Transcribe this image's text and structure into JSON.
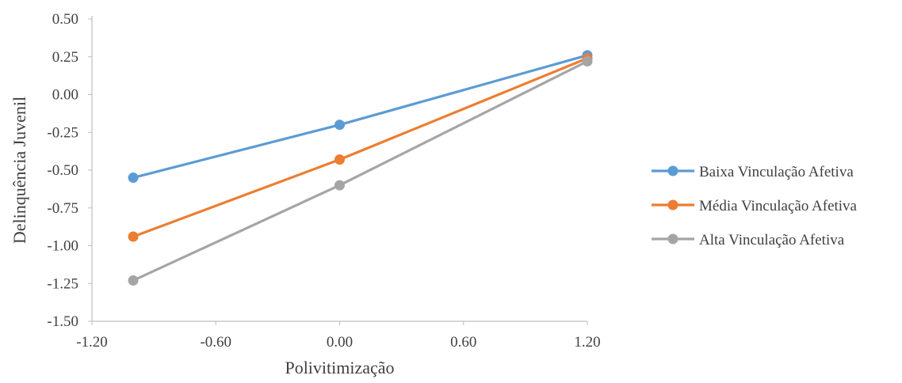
{
  "chart_data": {
    "type": "line",
    "xlabel": "Polivitimização",
    "ylabel": "Delinquência Juvenil",
    "xlim": [
      -1.2,
      1.2
    ],
    "ylim": [
      -1.5,
      0.5
    ],
    "x_ticks": [
      "-1.20",
      "-0.60",
      "0.00",
      "0.60",
      "1.20"
    ],
    "y_ticks": [
      "0.50",
      "0.25",
      "0.00",
      "-0.25",
      "-0.50",
      "-0.75",
      "-1.00",
      "-1.25",
      "-1.50"
    ],
    "x": [
      -1.0,
      0.0,
      1.2
    ],
    "grid": false,
    "legend_position": "right",
    "series": [
      {
        "name": "Baixa Vinculação Afetiva",
        "color": "#5b9bd5",
        "values": [
          -0.55,
          -0.2,
          0.26
        ]
      },
      {
        "name": "Média Vinculação Afetiva",
        "color": "#ed7d31",
        "values": [
          -0.94,
          -0.43,
          0.24
        ]
      },
      {
        "name": "Alta Vinculação Afetiva",
        "color": "#a5a5a5",
        "values": [
          -1.23,
          -0.6,
          0.22
        ]
      }
    ]
  }
}
